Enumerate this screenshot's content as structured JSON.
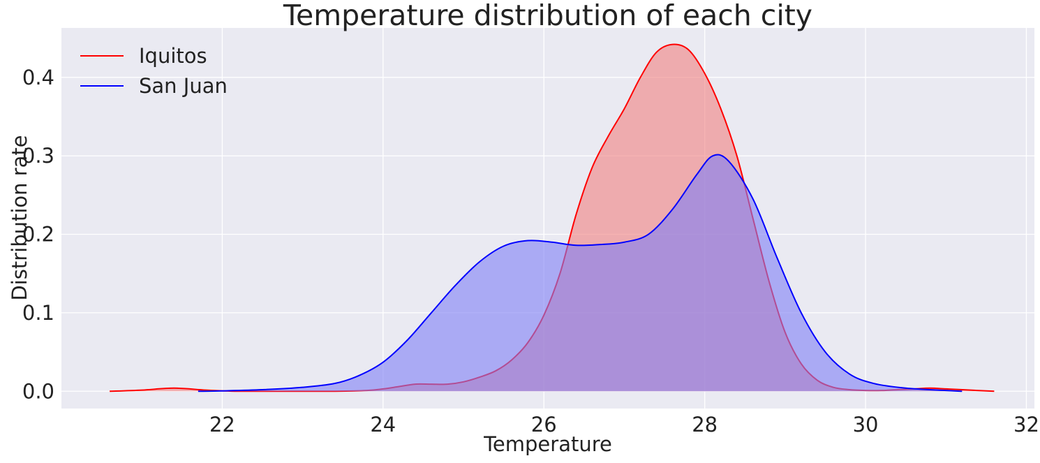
{
  "chart_data": {
    "type": "area",
    "title": "Temperature distribution of each city",
    "xlabel": "Temperature",
    "ylabel": "Distribution rate",
    "xlim": [
      20.0,
      32.1
    ],
    "ylim": [
      -0.022,
      0.463
    ],
    "xticks": [
      22,
      24,
      26,
      28,
      30,
      32
    ],
    "yticks": [
      0.0,
      0.1,
      0.2,
      0.3,
      0.4
    ],
    "ytick_labels": [
      "0.0",
      "0.1",
      "0.2",
      "0.3",
      "0.4"
    ],
    "grid": true,
    "legend_position": "top-left",
    "series": [
      {
        "name": "Iquitos",
        "color": "#ff0000",
        "fill": "#f08080",
        "x": [
          20.6,
          21.0,
          21.4,
          21.8,
          22.2,
          22.6,
          23.0,
          23.4,
          23.8,
          24.0,
          24.2,
          24.4,
          24.6,
          24.8,
          25.0,
          25.2,
          25.4,
          25.6,
          25.8,
          26.0,
          26.2,
          26.4,
          26.6,
          26.8,
          27.0,
          27.2,
          27.4,
          27.6,
          27.8,
          28.0,
          28.2,
          28.4,
          28.6,
          28.8,
          29.0,
          29.2,
          29.4,
          29.6,
          29.8,
          30.0,
          30.2,
          30.4,
          30.6,
          30.8,
          31.0,
          31.2,
          31.6
        ],
        "y": [
          0.0,
          0.0015,
          0.004,
          0.0015,
          0.0,
          0.0,
          0.0,
          0.0,
          0.001,
          0.003,
          0.006,
          0.009,
          0.009,
          0.009,
          0.012,
          0.018,
          0.026,
          0.04,
          0.062,
          0.097,
          0.15,
          0.225,
          0.285,
          0.325,
          0.36,
          0.4,
          0.432,
          0.442,
          0.435,
          0.405,
          0.36,
          0.3,
          0.22,
          0.14,
          0.075,
          0.035,
          0.014,
          0.005,
          0.002,
          0.001,
          0.001,
          0.002,
          0.003,
          0.004,
          0.003,
          0.002,
          0.0
        ]
      },
      {
        "name": "San Juan",
        "color": "#0000ff",
        "fill": "#7f7ff5",
        "x": [
          21.7,
          22.0,
          22.5,
          23.0,
          23.4,
          23.7,
          24.0,
          24.3,
          24.6,
          24.9,
          25.2,
          25.5,
          25.8,
          26.1,
          26.4,
          26.7,
          27.0,
          27.3,
          27.6,
          27.9,
          28.1,
          28.3,
          28.6,
          28.9,
          29.2,
          29.5,
          29.8,
          30.1,
          30.5,
          31.0,
          31.2
        ],
        "y": [
          0.0,
          0.0005,
          0.002,
          0.005,
          0.01,
          0.02,
          0.037,
          0.065,
          0.1,
          0.135,
          0.165,
          0.185,
          0.192,
          0.19,
          0.186,
          0.187,
          0.19,
          0.2,
          0.232,
          0.276,
          0.3,
          0.293,
          0.245,
          0.17,
          0.1,
          0.05,
          0.022,
          0.01,
          0.004,
          0.001,
          0.0
        ]
      }
    ]
  }
}
